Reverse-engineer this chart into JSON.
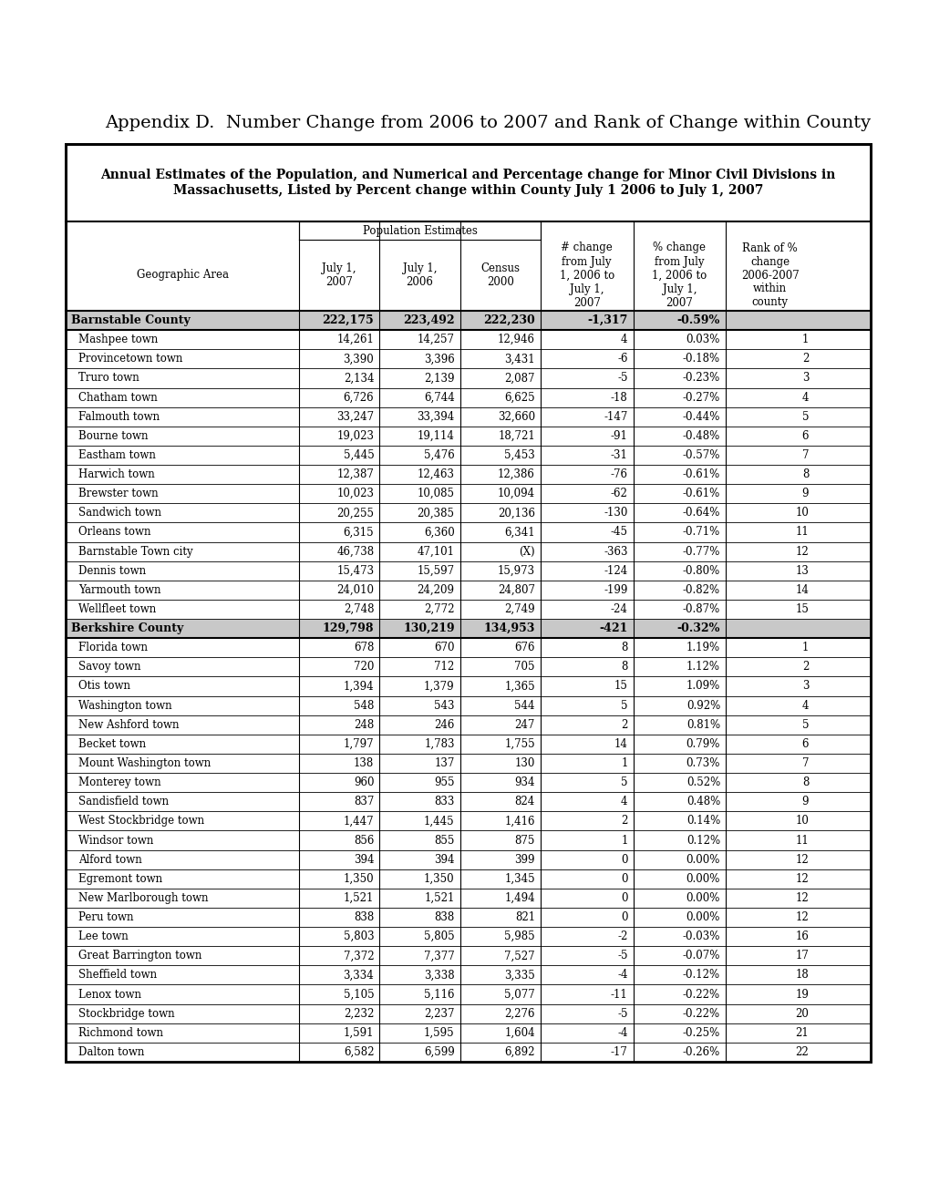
{
  "title": "Appendix D.  Number Change from 2006 to 2007 and Rank of Change within County",
  "table_title_line1": "Annual Estimates of the Population, and Numerical and Percentage change for Minor Civil Divisions in",
  "table_title_line2": "Massachusetts, Listed by Percent change within County July 1 2006 to July 1, 2007",
  "pop_est_header": "Population Estimates",
  "rows": [
    {
      "name": "Barnstable County",
      "july2007": "222,175",
      "july2006": "223,492",
      "census2000": "222,230",
      "num_change": "-1,317",
      "pct_change": "-0.59%",
      "rank": "",
      "is_county": true
    },
    {
      "name": "Mashpee town",
      "july2007": "14,261",
      "july2006": "14,257",
      "census2000": "12,946",
      "num_change": "4",
      "pct_change": "0.03%",
      "rank": "1",
      "is_county": false
    },
    {
      "name": "Provincetown town",
      "july2007": "3,390",
      "july2006": "3,396",
      "census2000": "3,431",
      "num_change": "-6",
      "pct_change": "-0.18%",
      "rank": "2",
      "is_county": false
    },
    {
      "name": "Truro town",
      "july2007": "2,134",
      "july2006": "2,139",
      "census2000": "2,087",
      "num_change": "-5",
      "pct_change": "-0.23%",
      "rank": "3",
      "is_county": false
    },
    {
      "name": "Chatham town",
      "july2007": "6,726",
      "july2006": "6,744",
      "census2000": "6,625",
      "num_change": "-18",
      "pct_change": "-0.27%",
      "rank": "4",
      "is_county": false
    },
    {
      "name": "Falmouth town",
      "july2007": "33,247",
      "july2006": "33,394",
      "census2000": "32,660",
      "num_change": "-147",
      "pct_change": "-0.44%",
      "rank": "5",
      "is_county": false
    },
    {
      "name": "Bourne town",
      "july2007": "19,023",
      "july2006": "19,114",
      "census2000": "18,721",
      "num_change": "-91",
      "pct_change": "-0.48%",
      "rank": "6",
      "is_county": false
    },
    {
      "name": "Eastham town",
      "july2007": "5,445",
      "july2006": "5,476",
      "census2000": "5,453",
      "num_change": "-31",
      "pct_change": "-0.57%",
      "rank": "7",
      "is_county": false
    },
    {
      "name": "Harwich town",
      "july2007": "12,387",
      "july2006": "12,463",
      "census2000": "12,386",
      "num_change": "-76",
      "pct_change": "-0.61%",
      "rank": "8",
      "is_county": false
    },
    {
      "name": "Brewster town",
      "july2007": "10,023",
      "july2006": "10,085",
      "census2000": "10,094",
      "num_change": "-62",
      "pct_change": "-0.61%",
      "rank": "9",
      "is_county": false
    },
    {
      "name": "Sandwich town",
      "july2007": "20,255",
      "july2006": "20,385",
      "census2000": "20,136",
      "num_change": "-130",
      "pct_change": "-0.64%",
      "rank": "10",
      "is_county": false
    },
    {
      "name": "Orleans town",
      "july2007": "6,315",
      "july2006": "6,360",
      "census2000": "6,341",
      "num_change": "-45",
      "pct_change": "-0.71%",
      "rank": "11",
      "is_county": false
    },
    {
      "name": "Barnstable Town city",
      "july2007": "46,738",
      "july2006": "47,101",
      "census2000": "(X)",
      "num_change": "-363",
      "pct_change": "-0.77%",
      "rank": "12",
      "is_county": false
    },
    {
      "name": "Dennis town",
      "july2007": "15,473",
      "july2006": "15,597",
      "census2000": "15,973",
      "num_change": "-124",
      "pct_change": "-0.80%",
      "rank": "13",
      "is_county": false
    },
    {
      "name": "Yarmouth town",
      "july2007": "24,010",
      "july2006": "24,209",
      "census2000": "24,807",
      "num_change": "-199",
      "pct_change": "-0.82%",
      "rank": "14",
      "is_county": false
    },
    {
      "name": "Wellfleet town",
      "july2007": "2,748",
      "july2006": "2,772",
      "census2000": "2,749",
      "num_change": "-24",
      "pct_change": "-0.87%",
      "rank": "15",
      "is_county": false
    },
    {
      "name": "Berkshire County",
      "july2007": "129,798",
      "july2006": "130,219",
      "census2000": "134,953",
      "num_change": "-421",
      "pct_change": "-0.32%",
      "rank": "",
      "is_county": true
    },
    {
      "name": "Florida town",
      "july2007": "678",
      "july2006": "670",
      "census2000": "676",
      "num_change": "8",
      "pct_change": "1.19%",
      "rank": "1",
      "is_county": false
    },
    {
      "name": "Savoy town",
      "july2007": "720",
      "july2006": "712",
      "census2000": "705",
      "num_change": "8",
      "pct_change": "1.12%",
      "rank": "2",
      "is_county": false
    },
    {
      "name": "Otis town",
      "july2007": "1,394",
      "july2006": "1,379",
      "census2000": "1,365",
      "num_change": "15",
      "pct_change": "1.09%",
      "rank": "3",
      "is_county": false
    },
    {
      "name": "Washington town",
      "july2007": "548",
      "july2006": "543",
      "census2000": "544",
      "num_change": "5",
      "pct_change": "0.92%",
      "rank": "4",
      "is_county": false
    },
    {
      "name": "New Ashford town",
      "july2007": "248",
      "july2006": "246",
      "census2000": "247",
      "num_change": "2",
      "pct_change": "0.81%",
      "rank": "5",
      "is_county": false
    },
    {
      "name": "Becket town",
      "july2007": "1,797",
      "july2006": "1,783",
      "census2000": "1,755",
      "num_change": "14",
      "pct_change": "0.79%",
      "rank": "6",
      "is_county": false
    },
    {
      "name": "Mount Washington town",
      "july2007": "138",
      "july2006": "137",
      "census2000": "130",
      "num_change": "1",
      "pct_change": "0.73%",
      "rank": "7",
      "is_county": false
    },
    {
      "name": "Monterey town",
      "july2007": "960",
      "july2006": "955",
      "census2000": "934",
      "num_change": "5",
      "pct_change": "0.52%",
      "rank": "8",
      "is_county": false
    },
    {
      "name": "Sandisfield town",
      "july2007": "837",
      "july2006": "833",
      "census2000": "824",
      "num_change": "4",
      "pct_change": "0.48%",
      "rank": "9",
      "is_county": false
    },
    {
      "name": "West Stockbridge town",
      "july2007": "1,447",
      "july2006": "1,445",
      "census2000": "1,416",
      "num_change": "2",
      "pct_change": "0.14%",
      "rank": "10",
      "is_county": false
    },
    {
      "name": "Windsor town",
      "july2007": "856",
      "july2006": "855",
      "census2000": "875",
      "num_change": "1",
      "pct_change": "0.12%",
      "rank": "11",
      "is_county": false
    },
    {
      "name": "Alford town",
      "july2007": "394",
      "july2006": "394",
      "census2000": "399",
      "num_change": "0",
      "pct_change": "0.00%",
      "rank": "12",
      "is_county": false
    },
    {
      "name": "Egremont town",
      "july2007": "1,350",
      "july2006": "1,350",
      "census2000": "1,345",
      "num_change": "0",
      "pct_change": "0.00%",
      "rank": "12",
      "is_county": false
    },
    {
      "name": "New Marlborough town",
      "july2007": "1,521",
      "july2006": "1,521",
      "census2000": "1,494",
      "num_change": "0",
      "pct_change": "0.00%",
      "rank": "12",
      "is_county": false
    },
    {
      "name": "Peru town",
      "july2007": "838",
      "july2006": "838",
      "census2000": "821",
      "num_change": "0",
      "pct_change": "0.00%",
      "rank": "12",
      "is_county": false
    },
    {
      "name": "Lee town",
      "july2007": "5,803",
      "july2006": "5,805",
      "census2000": "5,985",
      "num_change": "-2",
      "pct_change": "-0.03%",
      "rank": "16",
      "is_county": false
    },
    {
      "name": "Great Barrington town",
      "july2007": "7,372",
      "july2006": "7,377",
      "census2000": "7,527",
      "num_change": "-5",
      "pct_change": "-0.07%",
      "rank": "17",
      "is_county": false
    },
    {
      "name": "Sheffield town",
      "july2007": "3,334",
      "july2006": "3,338",
      "census2000": "3,335",
      "num_change": "-4",
      "pct_change": "-0.12%",
      "rank": "18",
      "is_county": false
    },
    {
      "name": "Lenox town",
      "july2007": "5,105",
      "july2006": "5,116",
      "census2000": "5,077",
      "num_change": "-11",
      "pct_change": "-0.22%",
      "rank": "19",
      "is_county": false
    },
    {
      "name": "Stockbridge town",
      "july2007": "2,232",
      "july2006": "2,237",
      "census2000": "2,276",
      "num_change": "-5",
      "pct_change": "-0.22%",
      "rank": "20",
      "is_county": false
    },
    {
      "name": "Richmond town",
      "july2007": "1,591",
      "july2006": "1,595",
      "census2000": "1,604",
      "num_change": "-4",
      "pct_change": "-0.25%",
      "rank": "21",
      "is_county": false
    },
    {
      "name": "Dalton town",
      "july2007": "6,582",
      "july2006": "6,599",
      "census2000": "6,892",
      "num_change": "-17",
      "pct_change": "-0.26%",
      "rank": "22",
      "is_county": false
    }
  ],
  "county_bg": "#c8c8c8",
  "white_bg": "#ffffff",
  "title_fontsize": 14,
  "table_title_fontsize": 10,
  "header_fontsize": 8.5,
  "data_fontsize": 8.5,
  "county_fontsize": 9
}
